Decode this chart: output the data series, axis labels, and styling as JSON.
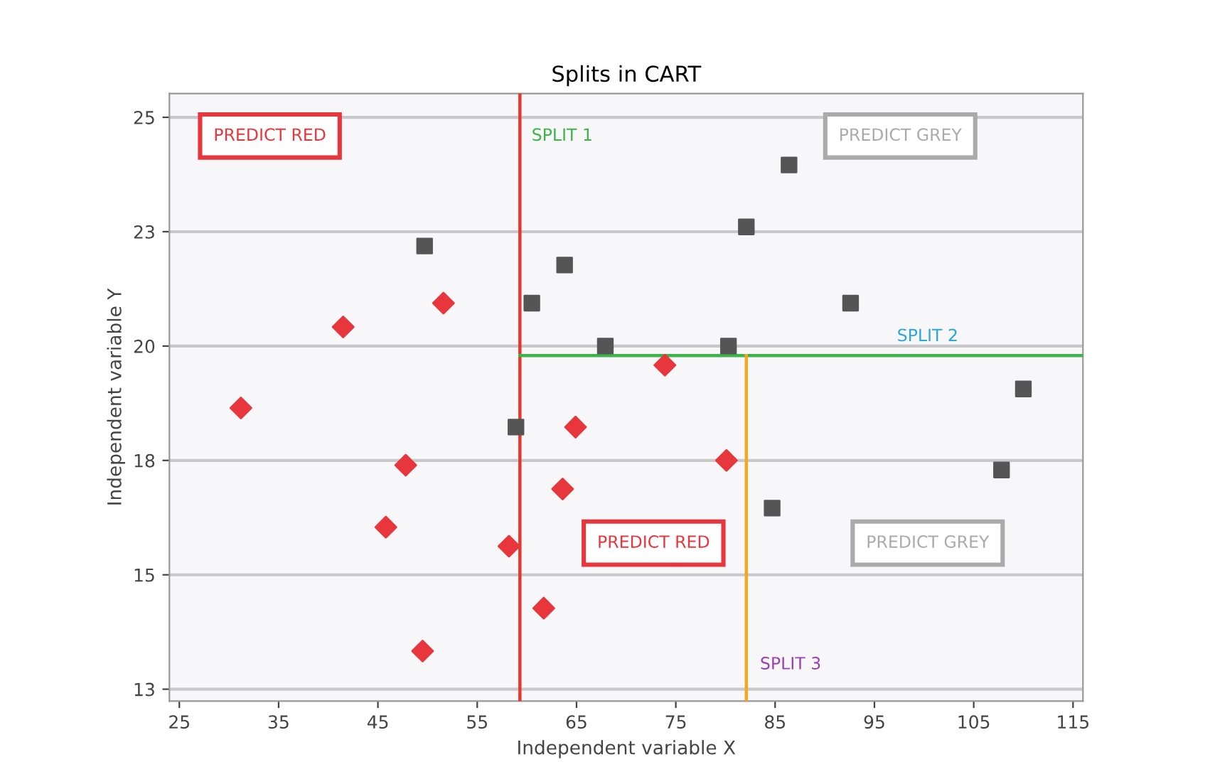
{
  "chart_data": {
    "type": "scatter",
    "title": "Splits in CART",
    "xlabel": "Independent variable X",
    "ylabel": "Independent variable Y",
    "xlim": [
      24,
      116
    ],
    "xticks": [
      25,
      35,
      45,
      55,
      65,
      75,
      85,
      95,
      105,
      115
    ],
    "ylim": [
      12.75,
      25.5
    ],
    "yticks": [
      13,
      {
        "value": 15.4,
        "label": "15"
      },
      {
        "value": 17.8,
        "label": "18"
      },
      {
        "value": 20.2,
        "label": "20"
      },
      {
        "value": 22.6,
        "label": "23"
      },
      25
    ],
    "grid": "y",
    "legend": false,
    "series": [
      {
        "marker": "square",
        "color": "#555555",
        "x": [
          49.7,
          86.4,
          82.1,
          63.8,
          60.5,
          92.6,
          67.9,
          80.3,
          110.0,
          58.9,
          107.8,
          84.7
        ],
        "values": [
          22.3,
          24.0,
          22.7,
          21.9,
          21.1,
          21.1,
          20.2,
          20.2,
          19.3,
          18.5,
          17.6,
          16.8
        ]
      },
      {
        "marker": "diamond",
        "color": "#e8363d",
        "x": [
          51.6,
          41.5,
          31.2,
          73.9,
          64.9,
          47.8,
          80.1,
          63.6,
          45.8,
          58.2,
          61.7,
          49.5
        ],
        "values": [
          21.1,
          20.6,
          18.9,
          19.8,
          18.5,
          17.7,
          17.8,
          17.2,
          16.4,
          16.0,
          14.7,
          13.8
        ]
      },
      {
        "type": "line",
        "color": "#e8362a",
        "x": [
          59.3,
          59.3
        ],
        "values": [
          25.5,
          12.75
        ]
      },
      {
        "type": "line",
        "color": "#3cb44b",
        "x": [
          59.3,
          116
        ],
        "values": [
          20.0,
          20.0
        ]
      },
      {
        "type": "line",
        "color": "#f5a623",
        "x": [
          82.1,
          82.1
        ],
        "values": [
          20.0,
          12.75
        ]
      }
    ],
    "annotations": [
      "PREDICT RED",
      "SPLIT 1",
      "PREDICT GREY",
      "SPLIT 2",
      "PREDICT RED",
      "PREDICT GREY",
      "SPLIT 3"
    ]
  }
}
